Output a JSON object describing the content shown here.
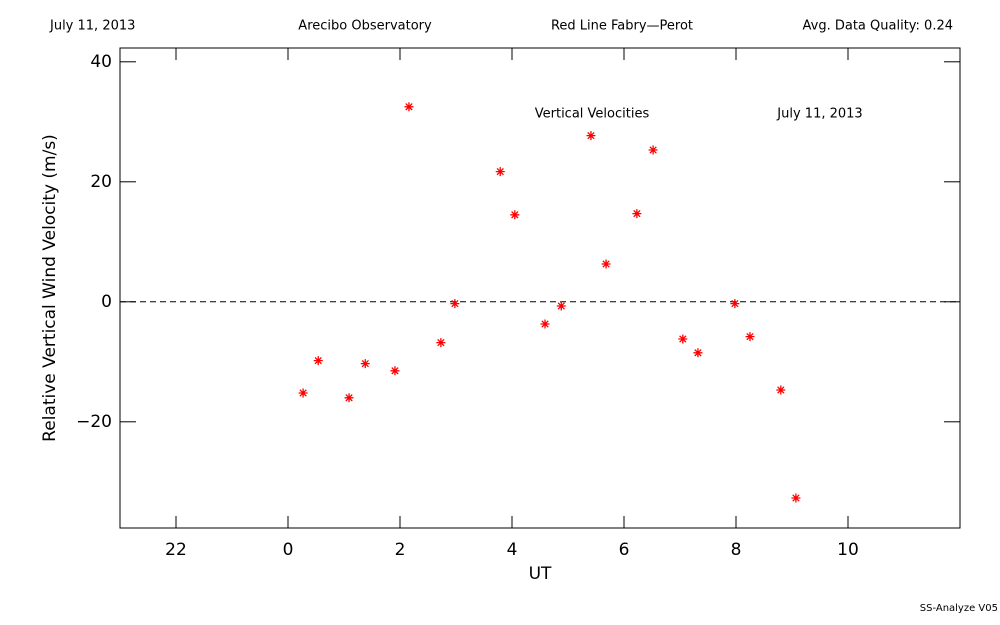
{
  "header": {
    "date": "July 11, 2013",
    "site": "Arecibo Observatory",
    "instrument": "Red Line Fabry—Perot",
    "quality": "Avg. Data Quality: 0.24"
  },
  "footer": "SS-Analyze V05",
  "chart_data": {
    "type": "scatter",
    "annotations": [
      "Vertical Velocities",
      "July 11, 2013"
    ],
    "xlabel": "UT",
    "ylabel": "Relative Vertical Wind Velocity (m/s)",
    "xlim": [
      -3,
      12
    ],
    "ylim": [
      -37.7,
      42.3
    ],
    "xticks": [
      {
        "value": -2,
        "label": "22"
      },
      0,
      2,
      4,
      6,
      8,
      10
    ],
    "yticks": [
      {
        "value": -20,
        "label": "−20"
      },
      0,
      20,
      40
    ],
    "hline": 0,
    "color": "#ff0000",
    "x": [
      0.27,
      0.54,
      1.09,
      1.38,
      1.91,
      2.16,
      2.73,
      2.98,
      3.79,
      4.05,
      4.59,
      4.88,
      5.41,
      5.68,
      6.23,
      6.52,
      7.05,
      7.32,
      7.98,
      8.25,
      8.8,
      9.07
    ],
    "values": [
      -15.2,
      -9.8,
      -16,
      -10.3,
      -11.5,
      32.5,
      -6.8,
      -0.3,
      21.7,
      14.5,
      -3.7,
      -0.7,
      27.7,
      6.3,
      14.7,
      25.3,
      -6.2,
      -8.5,
      -0.3,
      -5.8,
      -14.7,
      -32.7
    ]
  }
}
